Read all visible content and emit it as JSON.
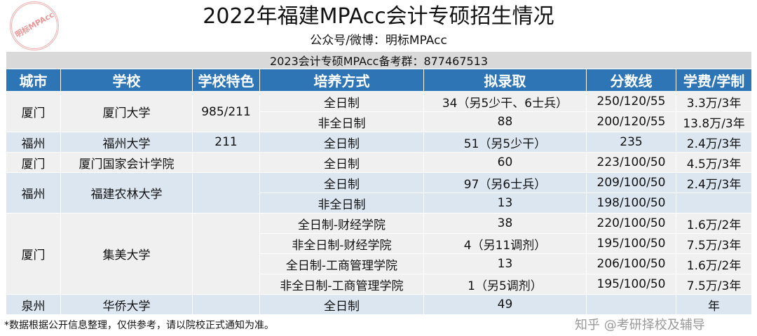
{
  "title": "2022年福建MPAcc会计专硕招生情况",
  "subtitle": "公众号/微博：明标MPAcc",
  "group_row": "2023会计专硕MPAcc备考群：877467513",
  "headers": [
    "城市",
    "学校",
    "学校特色",
    "培养方式",
    "拟录取",
    "分数线",
    "学费/学制"
  ],
  "schools": [
    {
      "city": "厦门",
      "school": "厦门大学",
      "feature": "985/211",
      "programs": [
        {
          "mode": "全日制",
          "admit": "34（另5少干、6士兵）",
          "score": "250/120/55",
          "fee": "3.3万/3年"
        },
        {
          "mode": "非全日制",
          "admit": "88",
          "score": "200/120/55",
          "fee": "13.8万/3年"
        }
      ]
    },
    {
      "city": "福州",
      "school": "福州大学",
      "feature": "211",
      "programs": [
        {
          "mode": "全日制",
          "admit": "51（另5少干）",
          "score": "235",
          "fee": "2.4万/3年"
        }
      ]
    },
    {
      "city": "厦门",
      "school": "厦门国家会计学院",
      "feature": "",
      "programs": [
        {
          "mode": "全日制",
          "admit": "60",
          "score": "223/100/50",
          "fee": "4.5万/3年"
        }
      ]
    },
    {
      "city": "福州",
      "school": "福建农林大学",
      "feature": "",
      "programs": [
        {
          "mode": "全日制",
          "admit": "97（另6士兵）",
          "score": "209/100/50",
          "fee": "2.4万/3年"
        },
        {
          "mode": "非全日制",
          "admit": "13",
          "score": "198/100/50",
          "fee": ""
        }
      ]
    },
    {
      "city": "厦门",
      "school": "集美大学",
      "feature": "",
      "programs": [
        {
          "mode": "全日制-财经学院",
          "admit": "38",
          "score": "220/100/50",
          "fee": "1.6万/2年"
        },
        {
          "mode": "非全日制-财经学院",
          "admit": "4（另11调剂）",
          "score": "195/100/50",
          "fee": "7.5万/3年"
        },
        {
          "mode": "全日制-工商管理学院",
          "admit": "13",
          "score": "206/100/50",
          "fee": "1.6万/2年"
        },
        {
          "mode": "非全日制-工商管理学院",
          "admit": "1（另5调剂）",
          "score": "195/100/50",
          "fee": "7.5万/3年"
        }
      ]
    },
    {
      "city": "泉州",
      "school": "华侨大学",
      "feature": "",
      "programs": [
        {
          "mode": "全日制",
          "admit": "49",
          "score": "",
          "fee": "年"
        }
      ]
    }
  ],
  "note": "*数据根据公开信息整理，仅供参考，请以院校正式通知为准。",
  "stamp_text": "明标MPAcc",
  "watermark": "知乎 @考研择校及辅导",
  "colors": {
    "header": "#2e75b6",
    "row_a": "#f0f0f0",
    "row_b": "#dce6f1"
  }
}
